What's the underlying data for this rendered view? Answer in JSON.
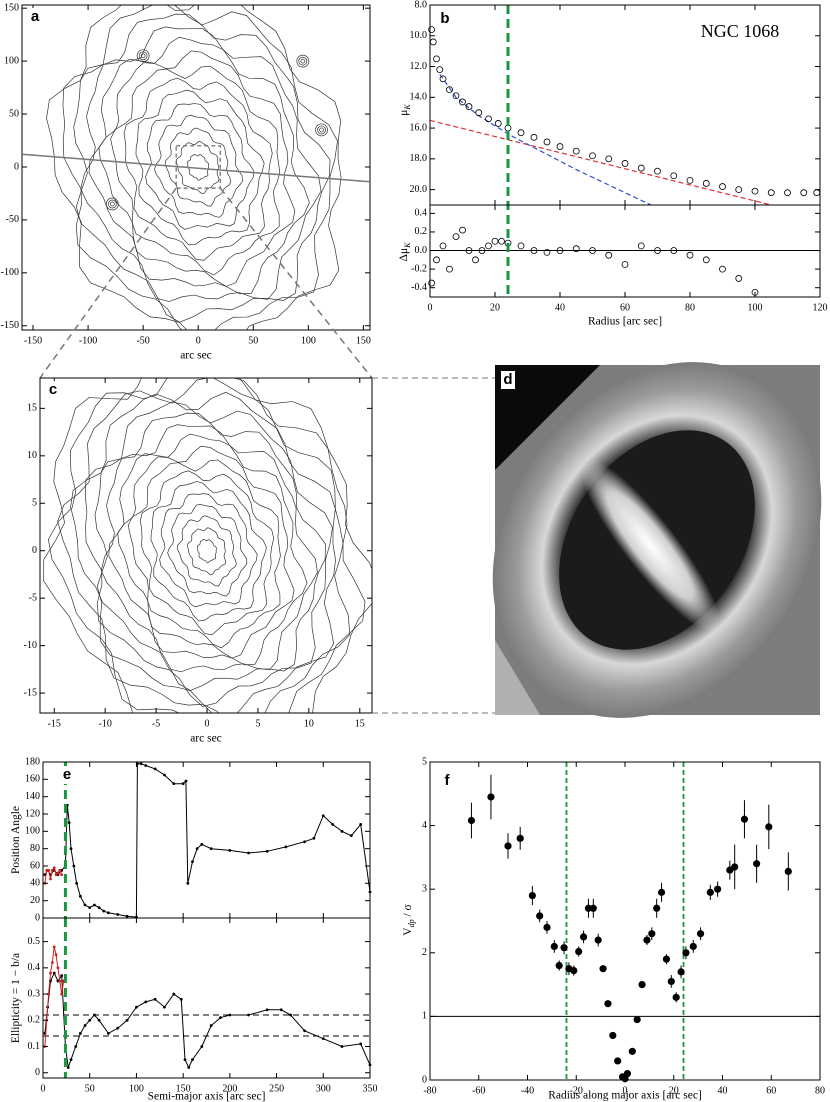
{
  "chart_data": [
    {
      "type": "contour",
      "label": "a",
      "xlabel": "arc sec",
      "xlim": [
        -160,
        156
      ],
      "ylim": [
        -154,
        153
      ],
      "xticks": [
        -150,
        -100,
        -50,
        0,
        50,
        100,
        150
      ],
      "yticks": [
        -150,
        -100,
        -50,
        0,
        50,
        100,
        150
      ]
    },
    {
      "type": "profile",
      "label": "b",
      "annotation": "NGC 1068",
      "xlabel": "Radius [arc sec]",
      "ylabel": "μ",
      "ylabel_sub": "K",
      "xlim": [
        0,
        120
      ],
      "xticks": [
        0,
        20,
        40,
        60,
        80,
        100,
        120
      ],
      "ylim": [
        21,
        8
      ],
      "yticks": [
        {
          "value": 8,
          "label": "8.0"
        },
        {
          "value": 10,
          "label": "10.0"
        },
        {
          "value": 12,
          "label": "12.0"
        },
        {
          "value": 14,
          "label": "14.0"
        },
        {
          "value": 16,
          "label": "16.0"
        },
        {
          "value": 18,
          "label": "18.0"
        },
        {
          "value": 20,
          "label": "20.0"
        }
      ],
      "x": [
        0.5,
        1,
        2,
        3,
        4,
        6,
        8,
        10,
        12,
        15,
        18,
        21,
        24,
        28,
        32,
        36,
        40,
        45,
        50,
        55,
        60,
        65,
        70,
        75,
        80,
        85,
        90,
        95,
        100,
        105,
        110,
        115,
        119
      ],
      "values": [
        9.6,
        10.4,
        11.5,
        12.2,
        12.8,
        13.5,
        13.9,
        14.3,
        14.6,
        15.0,
        15.4,
        15.7,
        16.0,
        16.3,
        16.6,
        16.9,
        17.2,
        17.5,
        17.8,
        18.0,
        18.3,
        18.6,
        18.8,
        19.1,
        19.4,
        19.6,
        19.8,
        20.0,
        20.1,
        20.2,
        20.2,
        20.2,
        20.2
      ],
      "models": [
        {
          "color": "#e03030",
          "x": [
            0,
            105
          ],
          "values": [
            15.5,
            21.0
          ]
        },
        {
          "color": "#3050d0",
          "x": [
            3,
            8,
            15,
            25,
            35,
            45,
            55,
            68
          ],
          "values": [
            12.5,
            14.0,
            15.2,
            16.5,
            17.6,
            18.7,
            19.7,
            21.0
          ]
        }
      ],
      "vline": 24,
      "vline_color": "#1a9641",
      "residual": {
        "ylabel": "Δμ",
        "ylabel_sub": "K",
        "ylim": [
          -0.5,
          0.49
        ],
        "yticks": [
          0.4,
          0.2,
          {
            "value": 0,
            "label": "0.0"
          },
          -0.2,
          -0.4
        ],
        "hline": 0,
        "x": [
          0.5,
          2,
          4,
          6,
          8,
          10,
          12,
          14,
          16,
          18,
          20,
          22,
          24,
          28,
          32,
          36,
          40,
          45,
          50,
          55,
          60,
          65,
          70,
          75,
          80,
          85,
          90,
          95,
          100
        ],
        "values": [
          -0.35,
          -0.1,
          0.05,
          -0.2,
          0.15,
          0.22,
          0.0,
          -0.1,
          0.0,
          0.05,
          0.1,
          0.1,
          0.08,
          0.05,
          0.0,
          -0.02,
          0.0,
          0.02,
          0.0,
          -0.05,
          -0.15,
          0.05,
          0.0,
          0.0,
          -0.05,
          -0.1,
          -0.2,
          -0.3,
          -0.45
        ]
      }
    },
    {
      "type": "contour",
      "label": "c",
      "xlabel": "arc sec",
      "xlim": [
        -16.4,
        16.2
      ],
      "ylim": [
        -17.1,
        18.2
      ],
      "xticks": [
        -15,
        -10,
        -5,
        0,
        5,
        10,
        15
      ],
      "yticks": [
        -15,
        -10,
        -5,
        0,
        5,
        10,
        15
      ]
    },
    {
      "type": "image",
      "label": "d"
    },
    {
      "type": "isophote",
      "label": "e",
      "xlabel": "Semi-major axis [arc sec]",
      "xlim": [
        0,
        350
      ],
      "xticks": [
        0,
        50,
        100,
        150,
        200,
        250,
        300,
        350
      ],
      "vline": 24,
      "vline_color": "#1a9641",
      "pa": {
        "ylabel": "Position Angle",
        "ylim": [
          0,
          180
        ],
        "yticks": [
          0,
          20,
          40,
          60,
          80,
          100,
          120,
          140,
          160,
          180
        ],
        "series": [
          {
            "color": "#000000",
            "x": [
              2,
              5,
              8,
              12,
              16,
              20,
              24,
              26,
              28,
              30,
              33,
              36,
              40,
              45,
              50,
              55,
              60,
              65,
              70,
              80,
              90,
              100,
              101,
              105,
              110,
              120,
              130,
              140,
              150,
              153,
              155,
              160,
              165,
              170,
              180,
              200,
              220,
              240,
              260,
              280,
              290,
              300,
              310,
              320,
              330,
              340,
              350
            ],
            "values": [
              50,
              55,
              50,
              55,
              50,
              55,
              60,
              130,
              110,
              80,
              60,
              40,
              25,
              15,
              12,
              15,
              12,
              8,
              6,
              4,
              2,
              1,
              178,
              178,
              176,
              172,
              165,
              155,
              155,
              158,
              40,
              65,
              80,
              85,
              80,
              78,
              75,
              77,
              82,
              88,
              92,
              118,
              108,
              100,
              95,
              108,
              30
            ]
          },
          {
            "color": "#d02020",
            "x": [
              2,
              4,
              6,
              8,
              10,
              12,
              14,
              16,
              18,
              20
            ],
            "values": [
              40,
              55,
              55,
              45,
              55,
              58,
              50,
              52,
              55,
              50
            ]
          }
        ]
      },
      "ellipticity": {
        "ylabel": "Ellipticity = 1 − b/a",
        "ylim": [
          -0.02,
          0.59
        ],
        "yticks": [
          0,
          0.1,
          0.2,
          0.3,
          0.4,
          0.5
        ],
        "hlines": [
          0.22,
          0.14
        ],
        "series": [
          {
            "color": "#000000",
            "x": [
              2,
              5,
              8,
              12,
              16,
              20,
              24,
              27,
              30,
              35,
              40,
              45,
              50,
              55,
              60,
              70,
              80,
              90,
              100,
              110,
              120,
              130,
              140,
              148,
              152,
              156,
              160,
              170,
              180,
              190,
              200,
              220,
              240,
              255,
              265,
              280,
              300,
              320,
              340,
              350
            ],
            "values": [
              0.15,
              0.25,
              0.35,
              0.38,
              0.35,
              0.37,
              0.1,
              0.02,
              0.05,
              0.1,
              0.15,
              0.18,
              0.2,
              0.22,
              0.2,
              0.15,
              0.17,
              0.2,
              0.25,
              0.27,
              0.28,
              0.25,
              0.3,
              0.28,
              0.05,
              0.02,
              0.05,
              0.1,
              0.18,
              0.21,
              0.22,
              0.22,
              0.24,
              0.24,
              0.22,
              0.16,
              0.13,
              0.1,
              0.11,
              0.03
            ]
          },
          {
            "color": "#d02020",
            "x": [
              2,
              4,
              6,
              8,
              10,
              12,
              14,
              16,
              18,
              20,
              22
            ],
            "values": [
              0.1,
              0.2,
              0.3,
              0.38,
              0.42,
              0.48,
              0.45,
              0.4,
              0.35,
              0.3,
              0.35
            ]
          }
        ]
      }
    },
    {
      "type": "scatter",
      "label": "f",
      "xlabel": "Radius along major axis [arc sec]",
      "ylabel": "V",
      "ylabel_sub": "dp",
      "ylabel_rest": " / σ",
      "xlim": [
        -80,
        80
      ],
      "ylim": [
        0,
        5
      ],
      "xticks": [
        -80,
        -60,
        -40,
        -20,
        0,
        20,
        40,
        60,
        80
      ],
      "yticks": [
        0,
        1,
        2,
        3,
        4,
        5
      ],
      "hline": 1,
      "vlines": [
        -24,
        24
      ],
      "vline_color": "#1a9641",
      "x": [
        -63,
        -55,
        -48,
        -43,
        -38,
        -35,
        -32,
        -29,
        -27,
        -25,
        -23,
        -21,
        -19,
        -17,
        -15,
        -13,
        -11,
        -9,
        -7,
        -5,
        -3,
        -1,
        0,
        1,
        3,
        5,
        7,
        9,
        11,
        13,
        15,
        17,
        19,
        21,
        23,
        25,
        28,
        31,
        35,
        38,
        43,
        45,
        49,
        54,
        59,
        67
      ],
      "values": [
        4.08,
        4.45,
        3.68,
        3.8,
        2.9,
        2.58,
        2.4,
        2.1,
        1.8,
        2.08,
        1.75,
        1.72,
        2.02,
        2.25,
        2.7,
        2.7,
        2.2,
        1.75,
        1.2,
        0.7,
        0.3,
        0.05,
        0.02,
        0.1,
        0.45,
        0.95,
        1.5,
        2.2,
        2.3,
        2.7,
        2.95,
        1.9,
        1.55,
        1.3,
        1.7,
        2.0,
        2.1,
        2.3,
        2.95,
        3.0,
        3.3,
        3.35,
        4.1,
        3.4,
        3.98,
        3.28
      ],
      "errors": [
        0.28,
        0.35,
        0.2,
        0.18,
        0.15,
        0.1,
        0.1,
        0.1,
        0.08,
        0.1,
        0.1,
        0.08,
        0.08,
        0.1,
        0.15,
        0.15,
        0.1,
        0.05,
        0.05,
        0.04,
        0.03,
        0.02,
        0.02,
        0.02,
        0.03,
        0.04,
        0.05,
        0.08,
        0.1,
        0.15,
        0.15,
        0.08,
        0.1,
        0.08,
        0.1,
        0.1,
        0.1,
        0.1,
        0.12,
        0.12,
        0.15,
        0.35,
        0.3,
        0.3,
        0.35,
        0.3
      ]
    }
  ]
}
